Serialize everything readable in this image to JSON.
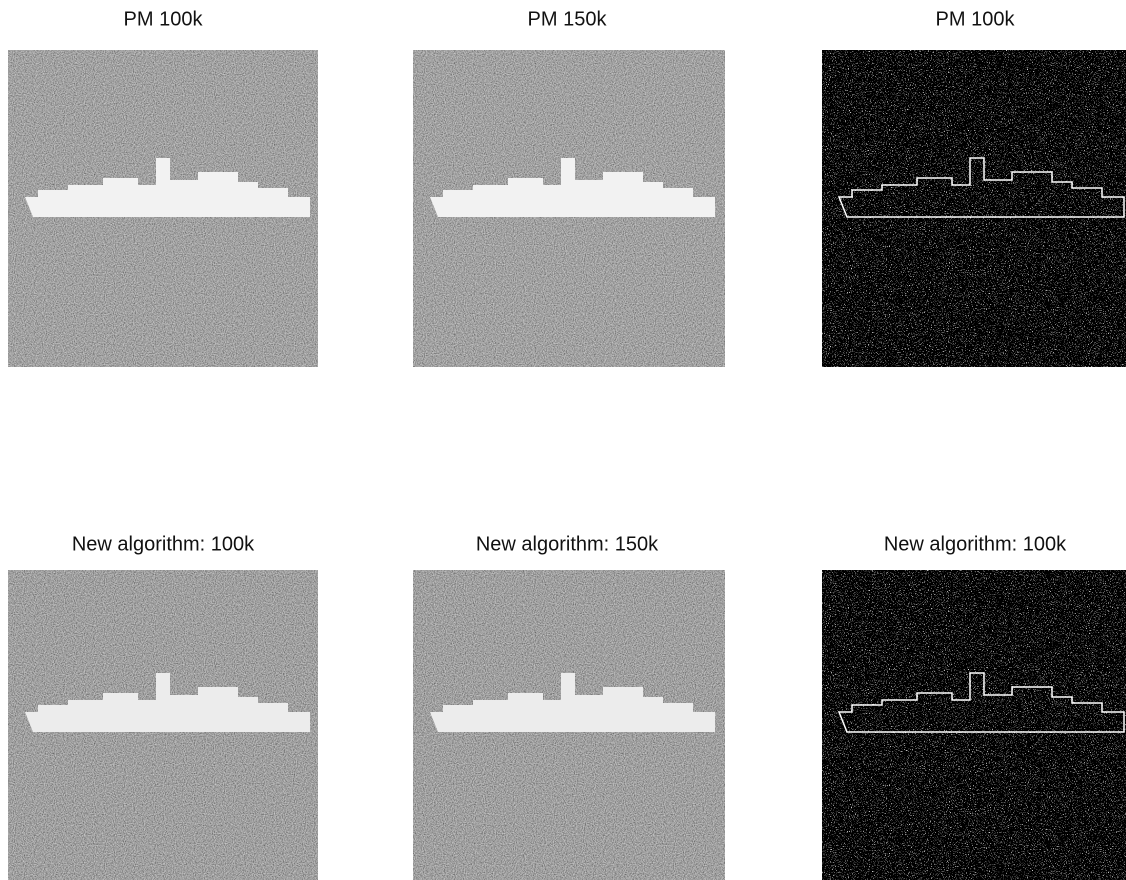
{
  "panels": [
    {
      "title": "PM 100k"
    },
    {
      "title": "PM 150k"
    },
    {
      "title": "PM 100k"
    },
    {
      "title": "New algorithm: 100k"
    },
    {
      "title": "New algorithm: 150k"
    },
    {
      "title": "New algorithm: 100k"
    }
  ]
}
